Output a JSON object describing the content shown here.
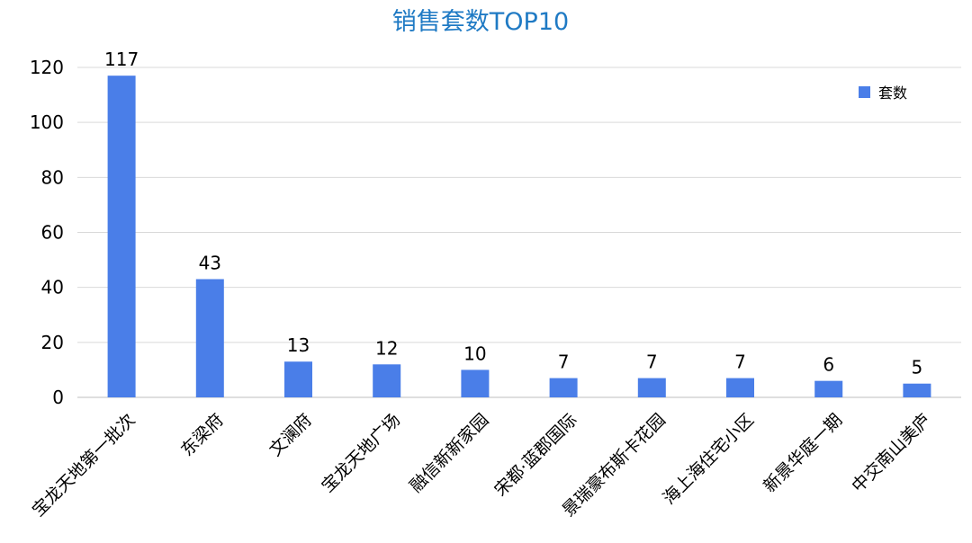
{
  "chart_data": {
    "type": "bar",
    "title": "销售套数TOP10",
    "xlabel": "",
    "ylabel": "",
    "categories": [
      "宝龙天地第一批次",
      "东梁府",
      "文澜府",
      "宝龙天地广场",
      "融信新新家园",
      "宋都·蓝郡国际",
      "景瑞豪布斯卡花园",
      "海上海住宅小区",
      "新景华庭一期",
      "中交南山美庐"
    ],
    "series": [
      {
        "name": "套数",
        "values": [
          117,
          43,
          13,
          12,
          10,
          7,
          7,
          7,
          6,
          5
        ],
        "color": "#4a7ee8"
      }
    ],
    "ylim": [
      0,
      120
    ],
    "yticks": [
      0,
      20,
      40,
      60,
      80,
      100,
      120
    ],
    "grid": true,
    "legend": "top-right",
    "data_labels": true
  }
}
